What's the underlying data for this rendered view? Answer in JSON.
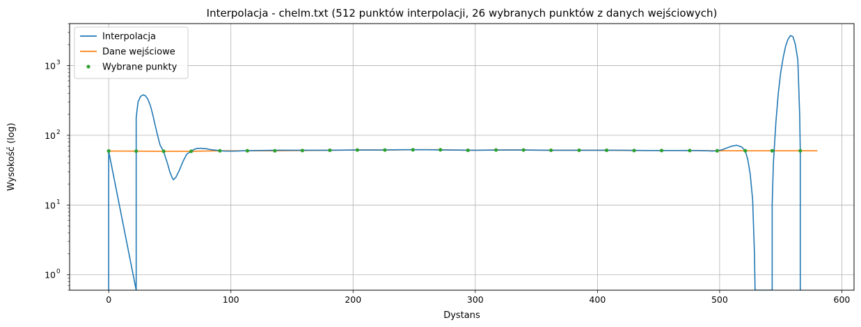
{
  "chart_data": {
    "type": "line",
    "title": "Interpolacja - chelm.txt (512 punktów interpolacji, 26 wybranych punktów z danych wejściowych)",
    "xlabel": "Dystans",
    "ylabel": "Wysokość (log)",
    "x_scale": "linear",
    "y_scale": "log",
    "xlim": [
      -32,
      610
    ],
    "ylim": [
      0.6,
      4000
    ],
    "x_ticks": [
      0,
      100,
      200,
      300,
      400,
      500,
      600
    ],
    "x_tick_labels": [
      "0",
      "100",
      "200",
      "300",
      "400",
      "500",
      "600"
    ],
    "y_ticks": [
      1,
      10,
      100,
      1000
    ],
    "y_tick_labels": [
      "10",
      "10",
      "10",
      "10"
    ],
    "y_tick_exponents": [
      "0",
      "1",
      "2",
      "3"
    ],
    "grid": true,
    "legend_position": "top-left",
    "series": [
      {
        "name": "Interpolacja",
        "style": "line",
        "color": "#1f77b4",
        "x": [
          0,
          0,
          22.5,
          22.5,
          24,
          26,
          28,
          30,
          32,
          34,
          36,
          38,
          40,
          42,
          45,
          48,
          50,
          52,
          53,
          55,
          58,
          61,
          64,
          67.5,
          70,
          73,
          76,
          80,
          84,
          88,
          91,
          95,
          100,
          105,
          110,
          113.5,
          120,
          140,
          160,
          180,
          200,
          220,
          240,
          260,
          280,
          300,
          320,
          340,
          360,
          380,
          400,
          420,
          440,
          460,
          480,
          490,
          494,
          498,
          502,
          506,
          510,
          514,
          518,
          521,
          523,
          525,
          527,
          528.5,
          529,
          529,
          543,
          543,
          544,
          546,
          548,
          550,
          552,
          554,
          556,
          558,
          560,
          562,
          564,
          565.5,
          566,
          566
        ],
        "y": [
          0.6,
          59,
          0.6,
          180,
          300,
          360,
          380,
          370,
          330,
          270,
          200,
          140,
          100,
          73,
          58,
          40,
          30,
          24.5,
          23,
          25,
          32,
          43,
          54,
          59,
          63,
          65,
          65,
          64,
          62,
          61,
          60,
          59.5,
          59.3,
          59.5,
          60,
          60,
          60.5,
          61,
          61,
          61,
          61.5,
          61.5,
          62,
          62,
          61.5,
          61,
          61.5,
          61.5,
          61,
          61,
          61,
          61,
          60.5,
          60.5,
          60.5,
          60,
          59.5,
          60,
          62,
          66,
          70,
          72,
          68,
          60,
          45,
          28,
          12,
          2,
          0.6,
          0.6,
          0.6,
          10,
          40,
          150,
          400,
          800,
          1300,
          1900,
          2400,
          2700,
          2600,
          2000,
          1200,
          200,
          59,
          0.6
        ]
      },
      {
        "name": "Dane wejściowe",
        "style": "line",
        "color": "#ff7f0e",
        "x": [
          0,
          22.5,
          45,
          67.5,
          91,
          113.5,
          136,
          158.5,
          181,
          203.5,
          226,
          249,
          271.5,
          294,
          317,
          339.5,
          362,
          385,
          407.5,
          430,
          452.5,
          475.5,
          498,
          521,
          543,
          566,
          580
        ],
        "y": [
          59.5,
          59.3,
          59,
          59,
          60,
          60,
          60,
          60.5,
          61,
          61.5,
          61.5,
          62,
          62,
          61,
          61.5,
          61.5,
          61,
          61,
          61,
          60.5,
          60.5,
          60.5,
          60,
          60,
          60,
          60,
          60
        ]
      },
      {
        "name": "Wybrane punkty",
        "style": "points",
        "color": "#2ca02c",
        "x": [
          0,
          22.5,
          45,
          67.5,
          91,
          113.5,
          136,
          158.5,
          181,
          203.5,
          226,
          249,
          271.5,
          294,
          317,
          339.5,
          362,
          385,
          407.5,
          430,
          452.5,
          475.5,
          498,
          521,
          543,
          566
        ],
        "y": [
          59.5,
          59.3,
          59,
          59,
          60,
          60,
          60,
          60.5,
          61,
          61.5,
          61.5,
          62,
          62,
          61,
          61.5,
          61.5,
          61,
          61,
          61,
          60.5,
          60.5,
          60.5,
          60,
          60,
          60,
          60
        ]
      }
    ]
  }
}
